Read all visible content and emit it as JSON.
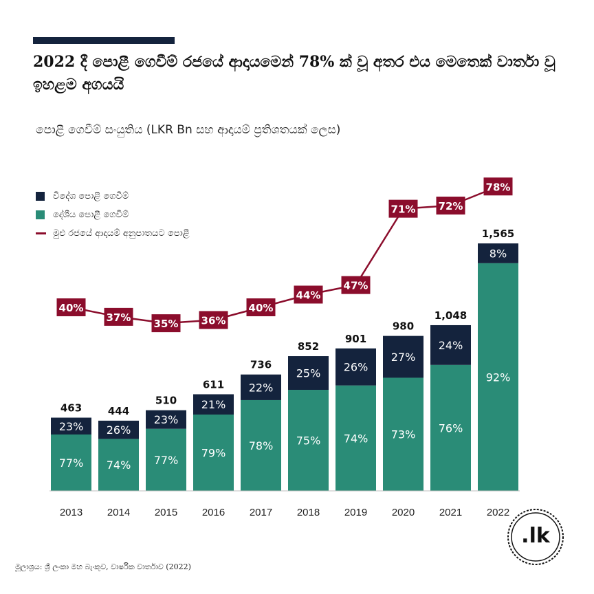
{
  "header": {
    "title": "2022 දී පොළී ගෙවීම් රජයේ ආදායමෙන් 78% ක් වූ අතර එය මෙතෙක් වාර්තා වූ ඉහළම අගයයි"
  },
  "subtitle": "පොළී ගෙවීම් සංයුතිය (LKR Bn සහ ආදායම් ප්‍රතිශතයක් ලෙස)",
  "legend": {
    "foreign": "විදේශ පොළී ගෙවීම්",
    "domestic": "දේශීය පොළී ගෙවීම්",
    "ratio": "මුළු රජයේ ආදායම් අනුපාතයට පොළී"
  },
  "colors": {
    "foreign": "#14233d",
    "domestic": "#2a8c77",
    "ratio": "#8b0d2c"
  },
  "chart_data": {
    "type": "bar",
    "categories": [
      "2013",
      "2014",
      "2015",
      "2016",
      "2017",
      "2018",
      "2019",
      "2020",
      "2021",
      "2022"
    ],
    "totals": [
      463,
      444,
      510,
      611,
      736,
      852,
      901,
      980,
      1048,
      1565
    ],
    "total_labels": [
      "463",
      "444",
      "510",
      "611",
      "736",
      "852",
      "901",
      "980",
      "1,048",
      "1,565"
    ],
    "series": [
      {
        "name": "දේශීය පොළී ගෙවීම්",
        "share_pct": [
          77,
          74,
          77,
          79,
          78,
          75,
          74,
          73,
          76,
          92
        ],
        "labels": [
          "77%",
          "74%",
          "77%",
          "79%",
          "78%",
          "75%",
          "74%",
          "73%",
          "76%",
          "92%"
        ]
      },
      {
        "name": "විදේශ පොළී ගෙවීම්",
        "share_pct": [
          23,
          26,
          23,
          21,
          22,
          25,
          26,
          27,
          24,
          8
        ],
        "labels": [
          "23%",
          "26%",
          "23%",
          "21%",
          "22%",
          "25%",
          "26%",
          "27%",
          "24%",
          "8%"
        ]
      }
    ],
    "line": {
      "name": "මුළු රජයේ ආදායම් අනුපාතයට පොළී",
      "values": [
        40,
        37,
        35,
        36,
        40,
        44,
        47,
        71,
        72,
        78
      ],
      "labels": [
        "40%",
        "37%",
        "35%",
        "36%",
        "40%",
        "44%",
        "47%",
        "71%",
        "72%",
        "78%"
      ]
    }
  },
  "footer": {
    "source": "මූලාශ්‍රය: ශ්‍රී ලංකා මහ බැංකුව, වාර්ෂික වාර්තාව (2022)",
    "logo": ".lk"
  }
}
